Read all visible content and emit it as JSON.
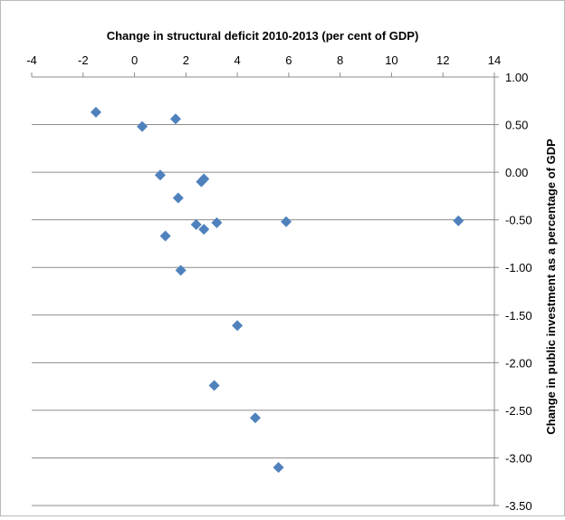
{
  "chart_data": {
    "type": "scatter",
    "title": "Change in structural deficit 2010-2013 (per cent of GDP)",
    "xlabel": "",
    "ylabel": "Change in public investment as a percentage of GDP",
    "xlim": [
      -4,
      14
    ],
    "ylim": [
      -3.5,
      1.0
    ],
    "x_ticks": [
      "-4",
      "-2",
      "0",
      "2",
      "4",
      "6",
      "8",
      "10",
      "12",
      "14"
    ],
    "y_ticks": [
      "1.00",
      "0.50",
      "0.00",
      "-0.50",
      "-1.00",
      "-1.50",
      "-2.00",
      "-2.50",
      "-3.00",
      "-3.50"
    ],
    "x_axis_position": "top",
    "y_axis_position": "right",
    "grid": "horizontal",
    "legend": "none",
    "marker": "diamond",
    "series": [
      {
        "color": "#4f81bd",
        "points": [
          {
            "x": -1.5,
            "y": 0.63
          },
          {
            "x": 0.3,
            "y": 0.48
          },
          {
            "x": 1.6,
            "y": 0.56
          },
          {
            "x": 1.0,
            "y": -0.03
          },
          {
            "x": 2.6,
            "y": -0.1
          },
          {
            "x": 2.7,
            "y": -0.07
          },
          {
            "x": 1.7,
            "y": -0.27
          },
          {
            "x": 2.4,
            "y": -0.55
          },
          {
            "x": 3.2,
            "y": -0.53
          },
          {
            "x": 2.7,
            "y": -0.6
          },
          {
            "x": 1.2,
            "y": -0.67
          },
          {
            "x": 5.9,
            "y": -0.52
          },
          {
            "x": 12.6,
            "y": -0.51
          },
          {
            "x": 1.8,
            "y": -1.03
          },
          {
            "x": 4.0,
            "y": -1.61
          },
          {
            "x": 3.1,
            "y": -2.24
          },
          {
            "x": 4.7,
            "y": -2.58
          },
          {
            "x": 5.6,
            "y": -3.1
          }
        ]
      }
    ]
  }
}
